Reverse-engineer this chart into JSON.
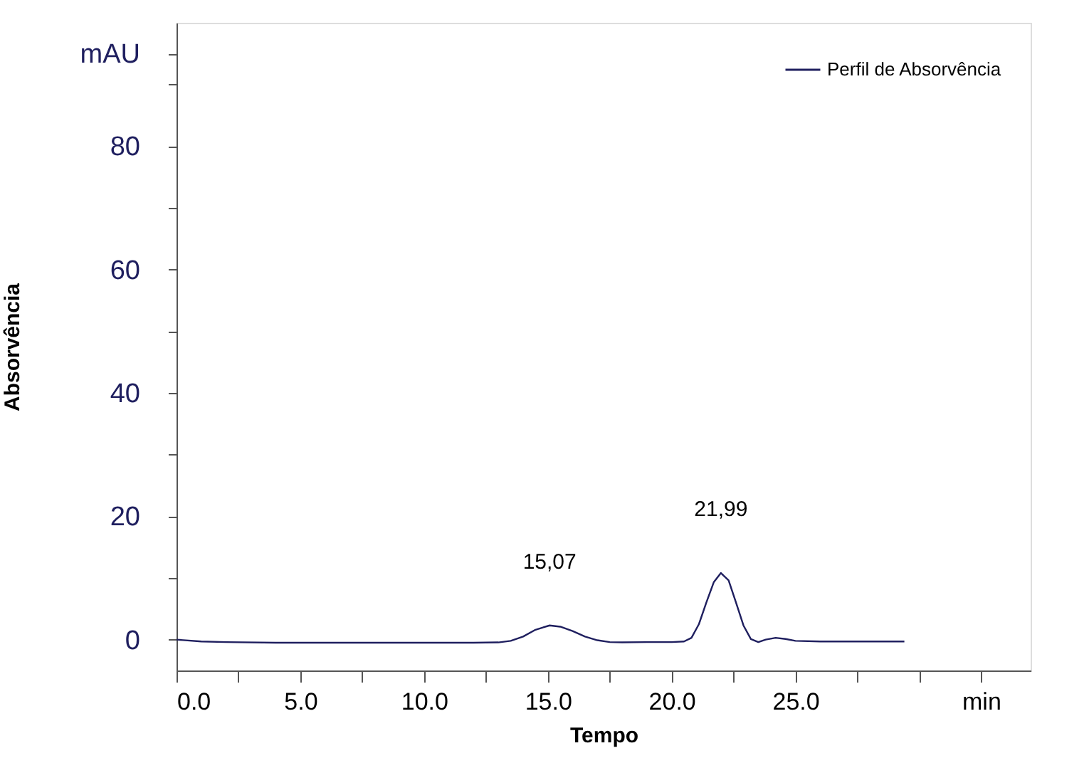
{
  "chart_data": {
    "type": "line",
    "xlabel": "Tempo",
    "ylabel": "Absorvência",
    "legend": "top right",
    "grid": false,
    "marker": "none",
    "line_style": "solid",
    "xlim": [
      0,
      34.5
    ],
    "ylim": [
      -5,
      100
    ],
    "xticks": [
      {
        "value": 0,
        "label": "0.0"
      },
      {
        "value": 2.5,
        "label": null
      },
      {
        "value": 5,
        "label": "5.0"
      },
      {
        "value": 7.5,
        "label": null
      },
      {
        "value": 10,
        "label": "10.0"
      },
      {
        "value": 12.5,
        "label": null
      },
      {
        "value": 15,
        "label": "15.0"
      },
      {
        "value": 17.5,
        "label": null
      },
      {
        "value": 20,
        "label": "20.0"
      },
      {
        "value": 22.5,
        "label": null
      },
      {
        "value": 25,
        "label": "25.0"
      },
      {
        "value": 27.5,
        "label": null
      },
      {
        "value": 30,
        "label": null
      },
      {
        "value": 32.5,
        "label": "min"
      }
    ],
    "yticks": [
      0,
      {
        "value": 10,
        "label": null
      },
      20,
      {
        "value": 30,
        "label": null
      },
      40,
      {
        "value": 50,
        "label": null
      },
      60,
      {
        "value": 70,
        "label": null
      },
      80,
      {
        "value": 90,
        "label": null
      },
      {
        "value": 95,
        "label": "mAU"
      }
    ],
    "annotations": [
      {
        "text": "15,07",
        "x": 15.07,
        "y": 2.3
      },
      {
        "text": "21,99",
        "x": 21.99,
        "y": 10.8
      }
    ],
    "series": [
      {
        "name": "Perfil de Absorvência",
        "color": "#1f1f5f",
        "x": [
          0,
          1,
          2,
          4,
          6,
          8,
          10,
          12,
          13,
          13.5,
          14,
          14.5,
          15.07,
          15.5,
          16,
          16.5,
          17,
          17.5,
          18,
          19,
          20,
          20.5,
          20.8,
          21.1,
          21.4,
          21.7,
          21.99,
          22.3,
          22.6,
          22.9,
          23.2,
          23.5,
          23.8,
          24.2,
          24.6,
          25,
          26,
          27,
          28,
          29,
          29.4
        ],
        "values": [
          0,
          -0.3,
          -0.4,
          -0.5,
          -0.5,
          -0.5,
          -0.5,
          -0.5,
          -0.45,
          -0.2,
          0.5,
          1.6,
          2.3,
          2.1,
          1.4,
          0.5,
          -0.1,
          -0.4,
          -0.45,
          -0.4,
          -0.4,
          -0.3,
          0.3,
          2.5,
          6.0,
          9.3,
          10.8,
          9.6,
          6.0,
          2.3,
          0.1,
          -0.4,
          0.0,
          0.3,
          0.1,
          -0.2,
          -0.3,
          -0.3,
          -0.3,
          -0.3,
          -0.3
        ]
      }
    ]
  }
}
